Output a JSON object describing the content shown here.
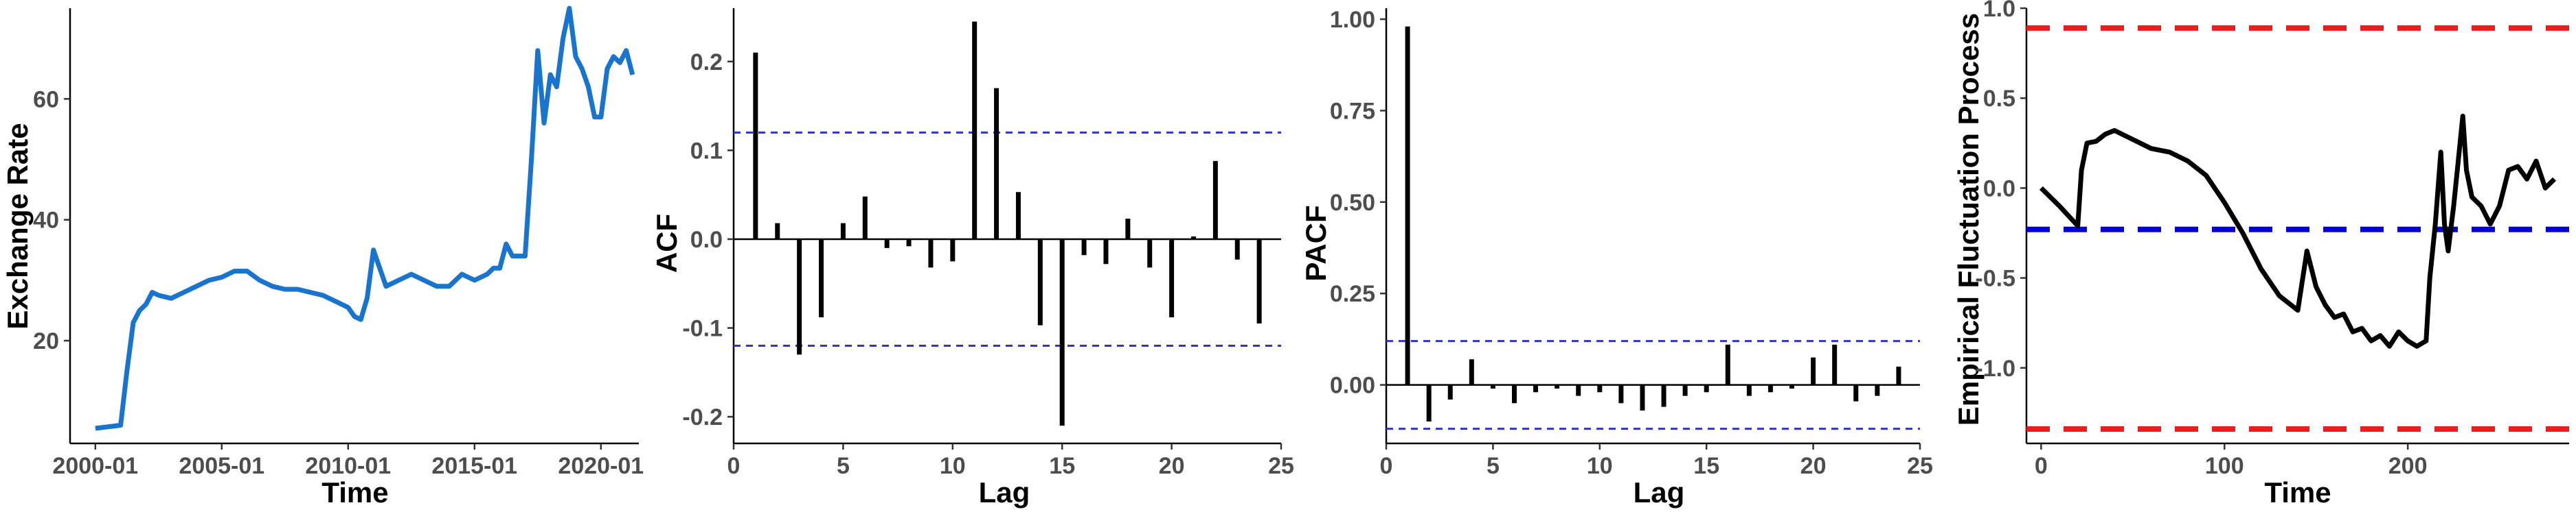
{
  "chart_data": [
    {
      "type": "line",
      "xlabel": "Time",
      "ylabel": "Exchange Rate",
      "xlim": [
        "1999-01",
        "2021-07"
      ],
      "ylim": [
        3,
        75
      ],
      "x_ticks": [
        "2000-01",
        "2005-01",
        "2010-01",
        "2015-01",
        "2020-01"
      ],
      "y_ticks": [
        20,
        40,
        60
      ],
      "grid": false,
      "line_color": "#1874CD",
      "series": [
        {
          "x": [
            "2000-01",
            "2001-01",
            "2001-04",
            "2001-07",
            "2001-10",
            "2002-01",
            "2002-04",
            "2002-07",
            "2003-01",
            "2003-07",
            "2004-01",
            "2004-07",
            "2005-01",
            "2005-07",
            "2006-01",
            "2006-07",
            "2007-01",
            "2007-07",
            "2008-01",
            "2008-07",
            "2009-01",
            "2009-07",
            "2010-01",
            "2010-04",
            "2010-07",
            "2010-10",
            "2011-01",
            "2011-07",
            "2012-01",
            "2012-07",
            "2013-01",
            "2013-07",
            "2014-01",
            "2014-07",
            "2015-01",
            "2015-07",
            "2015-10",
            "2016-01",
            "2016-04",
            "2016-07",
            "2016-10",
            "2017-01",
            "2017-04",
            "2017-07",
            "2017-10",
            "2018-01",
            "2018-04",
            "2018-07",
            "2018-10",
            "2019-01",
            "2019-04",
            "2019-07",
            "2019-10",
            "2020-01",
            "2020-04",
            "2020-07",
            "2020-10",
            "2021-01",
            "2021-04"
          ],
          "values": [
            5.5,
            6,
            15,
            23,
            25,
            26,
            28,
            27.5,
            27,
            28,
            29,
            30,
            30.5,
            31.5,
            31.5,
            30,
            29,
            28.5,
            28.5,
            28,
            27.5,
            26.5,
            25.5,
            24,
            23.5,
            27,
            35,
            29,
            30,
            31,
            30,
            29,
            29,
            31,
            30,
            31,
            32,
            32,
            36,
            34,
            34,
            34,
            50,
            68,
            56,
            64,
            62,
            70,
            75,
            67,
            65,
            62,
            57,
            57,
            65,
            67,
            66,
            68,
            64
          ]
        }
      ]
    },
    {
      "type": "bar",
      "xlabel": "Lag",
      "ylabel": "ACF",
      "xlim": [
        0,
        25
      ],
      "ylim": [
        -0.23,
        0.26
      ],
      "x_ticks": [
        0,
        5,
        10,
        15,
        20,
        25
      ],
      "y_ticks": [
        -0.2,
        -0.1,
        0.0,
        0.1,
        0.2
      ],
      "y_tick_labels": [
        "-0.2",
        "-0.1",
        "0.0",
        "0.1",
        "0.2"
      ],
      "confidence_band": 0.12,
      "band_color": "#3333CC",
      "lags": [
        1,
        2,
        3,
        4,
        5,
        6,
        7,
        8,
        9,
        10,
        11,
        12,
        13,
        14,
        15,
        16,
        17,
        18,
        19,
        20,
        21,
        22,
        23,
        24
      ],
      "values": [
        0.21,
        0.018,
        -0.13,
        -0.088,
        0.018,
        0.048,
        -0.01,
        -0.008,
        -0.032,
        -0.025,
        0.245,
        0.17,
        0.053,
        -0.097,
        -0.21,
        -0.018,
        -0.028,
        0.023,
        -0.032,
        -0.088,
        0.003,
        0.088,
        -0.023,
        -0.095
      ]
    },
    {
      "type": "bar",
      "xlabel": "Lag",
      "ylabel": "PACF",
      "xlim": [
        0,
        25
      ],
      "ylim": [
        -0.16,
        1.03
      ],
      "x_ticks": [
        0,
        5,
        10,
        15,
        20,
        25
      ],
      "y_ticks": [
        0.0,
        0.25,
        0.5,
        0.75,
        1.0
      ],
      "y_tick_labels": [
        "0.00",
        "0.25",
        "0.50",
        "0.75",
        "1.00"
      ],
      "confidence_band": 0.12,
      "band_color": "#3333CC",
      "lags": [
        1,
        2,
        3,
        4,
        5,
        6,
        7,
        8,
        9,
        10,
        11,
        12,
        13,
        14,
        15,
        16,
        17,
        18,
        19,
        20,
        21,
        22,
        23,
        24
      ],
      "values": [
        0.98,
        -0.1,
        -0.04,
        0.07,
        -0.01,
        -0.05,
        -0.02,
        -0.01,
        -0.03,
        -0.02,
        -0.05,
        -0.07,
        -0.06,
        -0.03,
        -0.02,
        0.11,
        -0.03,
        -0.02,
        -0.01,
        0.075,
        0.11,
        -0.045,
        -0.03,
        0.05
      ]
    },
    {
      "type": "line",
      "xlabel": "Time",
      "ylabel": "Empirical Fluctuation Process",
      "xlim": [
        -8,
        288
      ],
      "ylim": [
        -1.42,
        1.0
      ],
      "x_ticks": [
        0,
        100,
        200
      ],
      "y_ticks": [
        -1.0,
        -0.5,
        0.0,
        0.5,
        1.0
      ],
      "y_tick_labels": [
        "-1.0",
        "-0.5",
        "0.0",
        "0.5",
        "1.0"
      ],
      "boundaries": [
        0.89,
        -1.34
      ],
      "boundary_color": "#EE1C1C",
      "mean_level": -0.23,
      "mean_color": "#0000DD",
      "series": [
        {
          "x": [
            0,
            10,
            20,
            22,
            25,
            30,
            35,
            40,
            50,
            60,
            70,
            80,
            90,
            100,
            110,
            120,
            130,
            140,
            145,
            150,
            155,
            160,
            165,
            170,
            175,
            180,
            185,
            190,
            195,
            200,
            205,
            210,
            212,
            215,
            218,
            220,
            222,
            225,
            228,
            230,
            232,
            235,
            240,
            245,
            250,
            255,
            260,
            265,
            270,
            275,
            280
          ],
          "values": [
            0,
            -0.1,
            -0.21,
            0.1,
            0.25,
            0.26,
            0.3,
            0.32,
            0.27,
            0.22,
            0.2,
            0.15,
            0.07,
            -0.08,
            -0.25,
            -0.45,
            -0.6,
            -0.68,
            -0.35,
            -0.55,
            -0.65,
            -0.72,
            -0.7,
            -0.8,
            -0.78,
            -0.85,
            -0.82,
            -0.88,
            -0.8,
            -0.85,
            -0.88,
            -0.85,
            -0.5,
            -0.2,
            0.2,
            -0.2,
            -0.35,
            -0.1,
            0.2,
            0.4,
            0.1,
            -0.05,
            -0.1,
            -0.2,
            -0.1,
            0.1,
            0.12,
            0.05,
            0.15,
            0.0,
            0.05
          ]
        }
      ]
    }
  ]
}
